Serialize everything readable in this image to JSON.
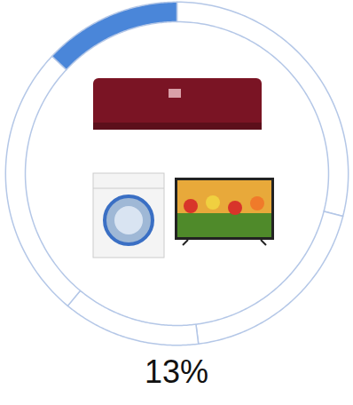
{
  "chart_data": {
    "type": "donut",
    "values": [
      29,
      19,
      13,
      26,
      13
    ],
    "colors": [
      "#ffffff",
      "#ffffff",
      "#ffffff",
      "#ffffff",
      "#4a86d9"
    ],
    "value_labels": [
      null,
      null,
      null,
      null,
      "13%"
    ],
    "data_labels": true
  }
}
